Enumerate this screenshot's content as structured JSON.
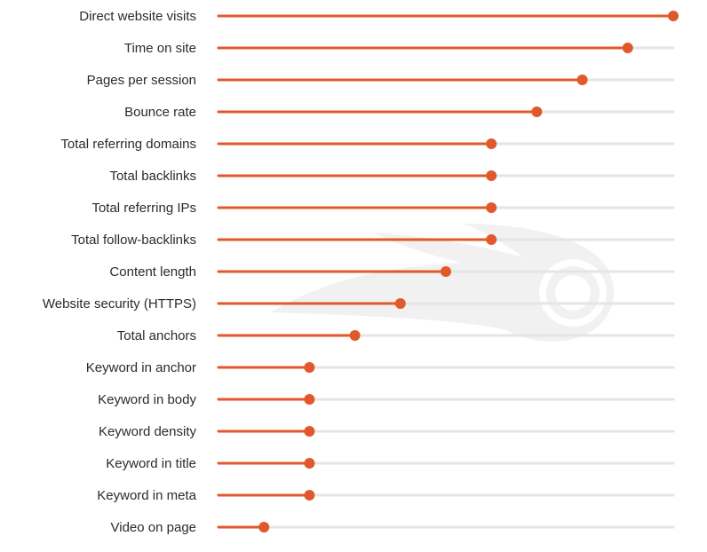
{
  "chart_data": {
    "type": "lollipop",
    "orientation": "horizontal",
    "categories": [
      "Direct website visits",
      "Time on site",
      "Pages per session",
      "Bounce rate",
      "Total referring domains",
      "Total backlinks",
      "Total referring IPs",
      "Total follow-backlinks",
      "Content length",
      "Website security (HTTPS)",
      "Total anchors",
      "Keyword in anchor",
      "Keyword in body",
      "Keyword density",
      "Keyword in title",
      "Keyword in meta",
      "Video on page"
    ],
    "values": [
      100,
      90,
      80,
      70,
      60,
      60,
      60,
      60,
      50,
      40,
      30,
      20,
      20,
      20,
      20,
      20,
      10
    ],
    "xlim": [
      0,
      100
    ],
    "colors": {
      "accent": "#e0592a",
      "track": "#e5e5e5",
      "text": "#2b2b2b",
      "watermark": "#f2f2f2"
    },
    "watermark_icon": "semrush-flame-logo"
  }
}
